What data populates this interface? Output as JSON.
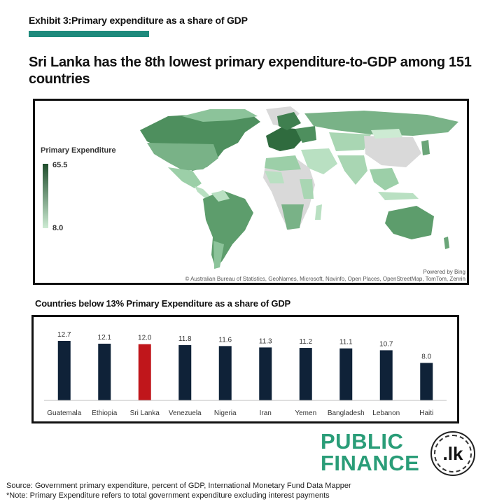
{
  "header": {
    "exhibit": "Exhibit 3:Primary expenditure as a share of GDP",
    "headline": "Sri Lanka has the 8th lowest primary expenditure-to-GDP among 151 countries"
  },
  "map": {
    "legend_title": "Primary Expenditure",
    "legend_max": "65.5",
    "legend_min": "8.0",
    "powered_by": "Powered by Bing",
    "attribution": "© Australian Bureau of Statistics, GeoNames, Microsoft, Navinfo, Open Places, OpenStreetMap, TomTom, Zenrin",
    "colors": {
      "high": "#1f4d2c",
      "low": "#cdebd3",
      "no_data": "#d9d9d9"
    }
  },
  "chart_data": {
    "type": "bar",
    "title": "Countries below 13% Primary Expenditure as a share of GDP",
    "categories": [
      "Guatemala",
      "Ethiopia",
      "Sri Lanka",
      "Venezuela",
      "Nigeria",
      "Iran",
      "Yemen",
      "Bangladesh",
      "Lebanon",
      "Haiti"
    ],
    "values": [
      12.7,
      12.1,
      12.0,
      11.8,
      11.6,
      11.3,
      11.2,
      11.1,
      10.7,
      8.0
    ],
    "value_labels": [
      "12.7",
      "12.1",
      "12.0",
      "11.8",
      "11.6",
      "11.3",
      "11.2",
      "11.1",
      "10.7",
      "8.0"
    ],
    "highlight": "Sri Lanka",
    "colors": {
      "bar": "#0f2238",
      "highlight": "#c0161b"
    },
    "xlabel": "",
    "ylabel": "",
    "ylim": [
      0,
      13
    ],
    "grid": false
  },
  "logo": {
    "line1": "PUBLIC",
    "line2": "FINANCE",
    "badge": ".lk"
  },
  "footer": {
    "source": "Source: Government primary expenditure, percent of GDP, International Monetary Fund Data Mapper",
    "note": "*Note: Primary Expenditure refers to total government expenditure excluding interest payments"
  }
}
